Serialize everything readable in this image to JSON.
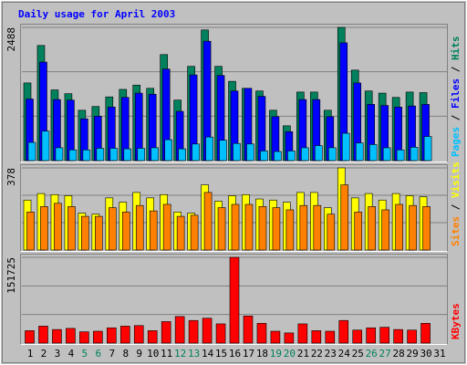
{
  "chart_data": {
    "type": "bar",
    "title": "Daily usage for April 2003",
    "title_color": "#0000ff",
    "categories": [
      "1",
      "2",
      "3",
      "4",
      "5",
      "6",
      "7",
      "8",
      "9",
      "10",
      "11",
      "12",
      "13",
      "14",
      "15",
      "16",
      "17",
      "18",
      "19",
      "20",
      "21",
      "22",
      "23",
      "24",
      "25",
      "26",
      "27",
      "28",
      "29",
      "30",
      "31"
    ],
    "category_colors": [
      "#000000",
      "#000000",
      "#000000",
      "#000000",
      "#00805c",
      "#00805c",
      "#000000",
      "#000000",
      "#000000",
      "#000000",
      "#000000",
      "#00805c",
      "#00805c",
      "#000000",
      "#000000",
      "#000000",
      "#000000",
      "#000000",
      "#00805c",
      "#00805c",
      "#000000",
      "#000000",
      "#000000",
      "#000000",
      "#000000",
      "#00805c",
      "#00805c",
      "#000000",
      "#000000",
      "#000000",
      "#000000"
    ],
    "legend_separator": " / ",
    "grid": true,
    "panels": [
      {
        "ylim": [
          0,
          2488
        ],
        "yticks": [
          2488
        ],
        "series": [
          {
            "name": "Hits",
            "color": "#00805c",
            "values": [
              1450,
              2150,
              1320,
              1250,
              940,
              1010,
              1190,
              1330,
              1410,
              1350,
              1980,
              1130,
              1760,
              2440,
              1760,
              1480,
              1350,
              1300,
              940,
              650,
              1280,
              1280,
              940,
              2488,
              1690,
              1300,
              1260,
              1180,
              1280,
              1270,
              null
            ]
          },
          {
            "name": "Files",
            "color": "#0000ff",
            "values": [
              1150,
              1840,
              1140,
              1130,
              780,
              830,
              1000,
              1180,
              1260,
              1240,
              1710,
              920,
              1600,
              2230,
              1590,
              1300,
              1350,
              1200,
              820,
              540,
              1140,
              1140,
              820,
              2200,
              1450,
              1050,
              1030,
              1000,
              1020,
              1050,
              null
            ]
          },
          {
            "name": "Pages",
            "color": "#00c0ff",
            "values": [
              340,
              550,
              240,
              200,
              200,
              230,
              230,
              220,
              230,
              240,
              390,
              220,
              310,
              440,
              380,
              320,
              310,
              180,
              170,
              180,
              240,
              280,
              240,
              510,
              330,
              300,
              240,
              200,
              250,
              450,
              null
            ]
          }
        ]
      },
      {
        "ylim": [
          0,
          378
        ],
        "yticks": [
          378
        ],
        "series": [
          {
            "name": "Visits",
            "color": "#ffff00",
            "values": [
              230,
              260,
              255,
              250,
              170,
              165,
              240,
              220,
              265,
              240,
              255,
              175,
              170,
              300,
              225,
              250,
              255,
              235,
              230,
              220,
              265,
              265,
              195,
              378,
              240,
              260,
              230,
              260,
              250,
              245,
              null
            ]
          },
          {
            "name": "Sites",
            "color": "#ff8000",
            "values": [
              175,
              200,
              215,
              200,
              155,
              155,
              195,
              175,
              205,
              180,
              210,
              155,
              160,
              265,
              195,
              210,
              210,
              200,
              195,
              185,
              205,
              205,
              165,
              300,
              175,
              200,
              185,
              210,
              205,
              200,
              null
            ]
          }
        ]
      },
      {
        "ylim": [
          0,
          151725
        ],
        "yticks": [
          151725
        ],
        "series": [
          {
            "name": "KBytes",
            "color": "#ff0000",
            "values": [
              22000,
              30000,
              24000,
              26000,
              20000,
              21000,
              27000,
              30000,
              31000,
              22000,
              38000,
              47000,
              40000,
              44000,
              34000,
              151725,
              48000,
              35000,
              21000,
              18000,
              34000,
              22000,
              21000,
              40000,
              23000,
              27000,
              28000,
              24000,
              23000,
              35000,
              null
            ]
          }
        ]
      }
    ]
  }
}
